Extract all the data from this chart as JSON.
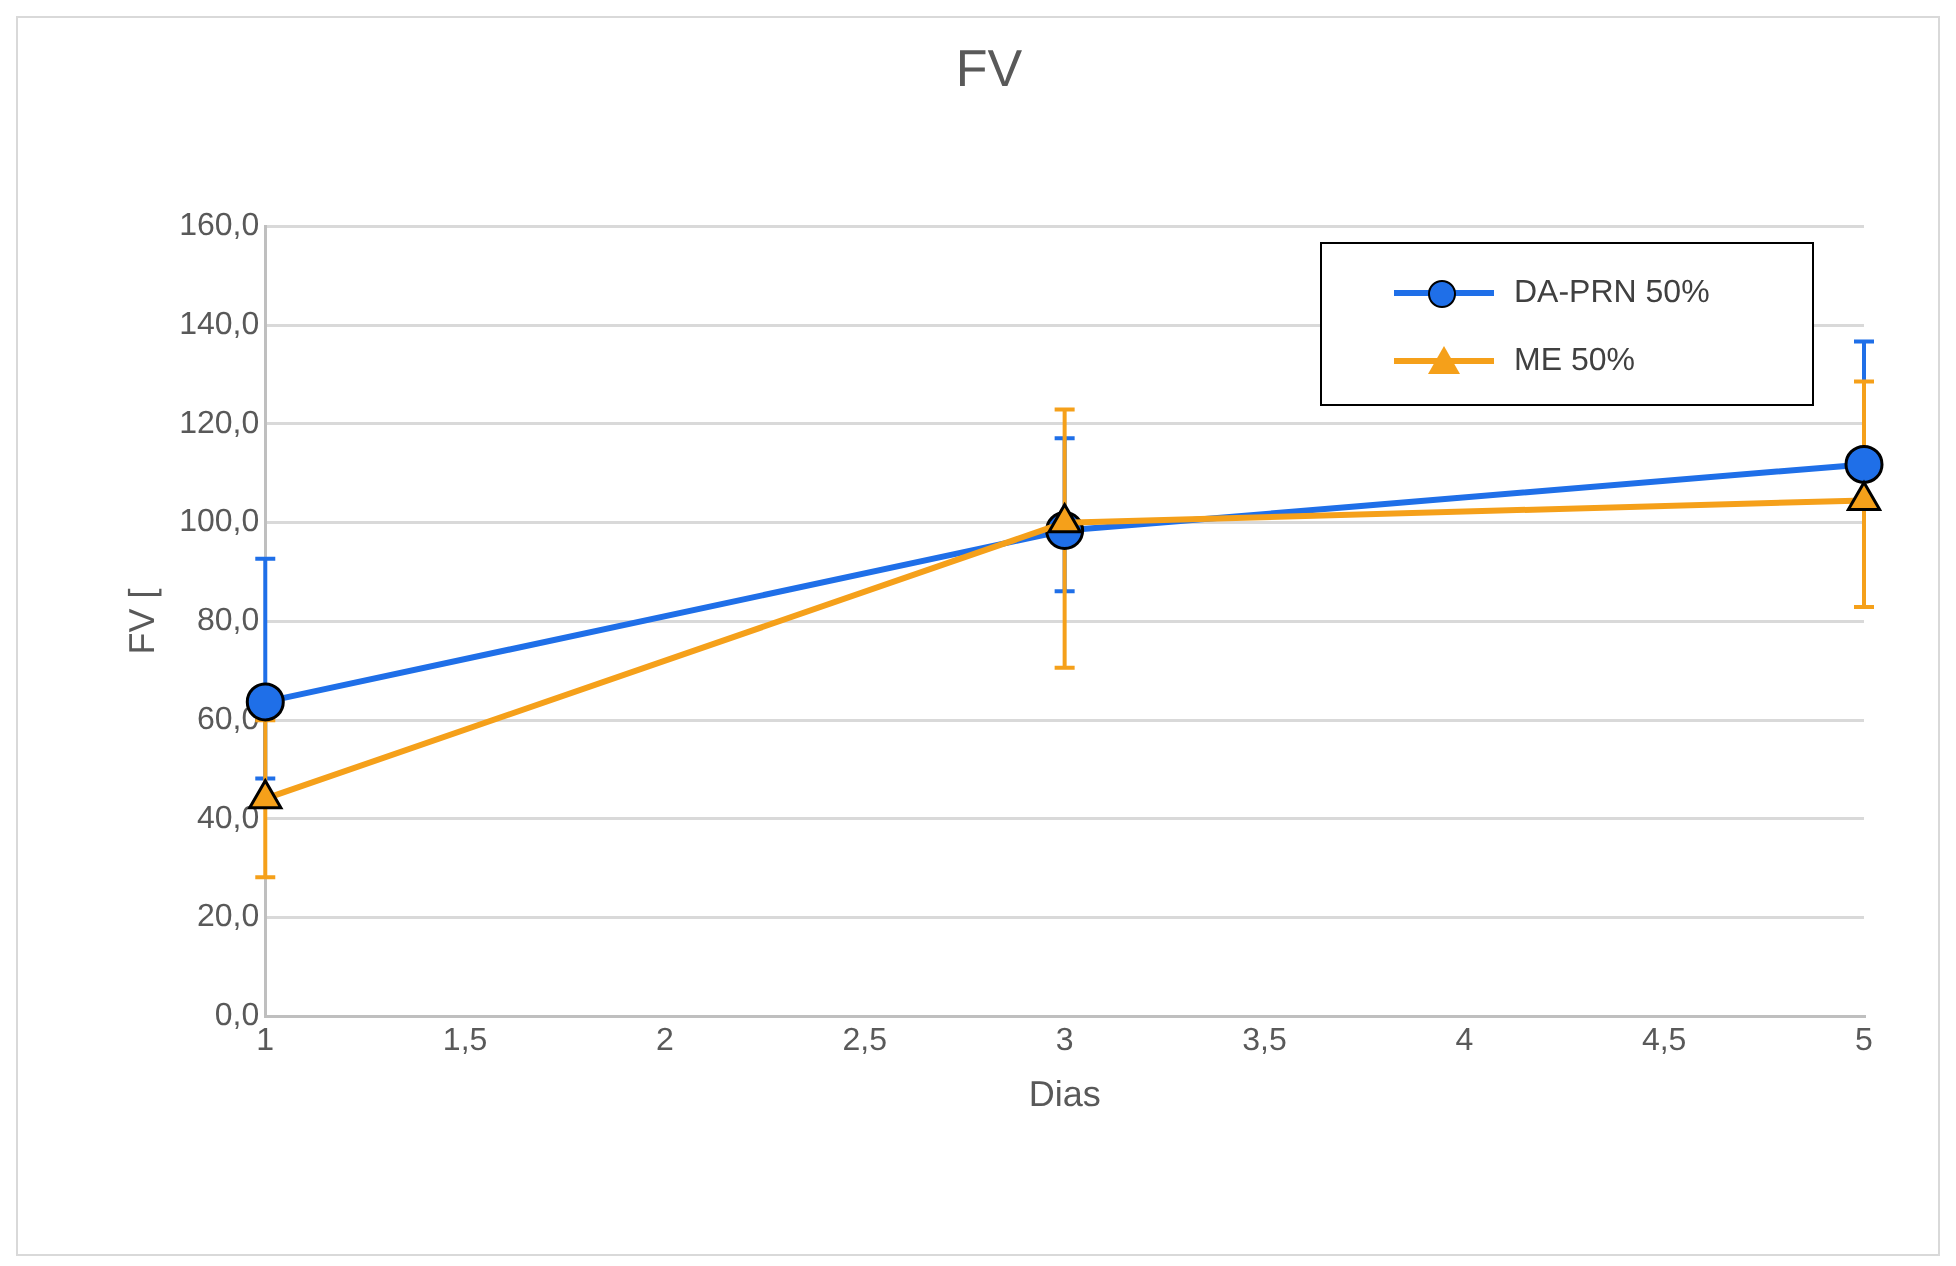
{
  "chart_data": {
    "type": "line",
    "title": "FV",
    "xlabel": "Dias",
    "ylabel": "FV [",
    "x": [
      1,
      3,
      5
    ],
    "xlim": [
      1,
      5
    ],
    "xticks": [
      1,
      {
        "value": 1.5,
        "label": "1,5"
      },
      2,
      {
        "value": 2.5,
        "label": "2,5"
      },
      3,
      {
        "value": 3.5,
        "label": "3,5"
      },
      4,
      {
        "value": 4.5,
        "label": "4,5"
      },
      5
    ],
    "ylim": [
      0,
      160
    ],
    "yticks": [
      {
        "value": 0,
        "label": "0,0"
      },
      {
        "value": 20,
        "label": "20,0"
      },
      {
        "value": 40,
        "label": "40,0"
      },
      {
        "value": 60,
        "label": "60,0"
      },
      {
        "value": 80,
        "label": "80,0"
      },
      {
        "value": 100,
        "label": "100,0"
      },
      {
        "value": 120,
        "label": "120,0"
      },
      {
        "value": 140,
        "label": "140,0"
      },
      {
        "value": 160,
        "label": "160,0"
      }
    ],
    "grid": "y",
    "legend": "top right",
    "line_style": "solid",
    "series": [
      {
        "name": "DA-PRN 50%",
        "color": "#1f6fe8",
        "marker": "circle",
        "values": [
          63.7,
          98.4,
          111.8
        ],
        "errors": [
          [
            48.2,
            92.7
          ],
          [
            86.1,
            117.1
          ],
          [
            109,
            136.7
          ]
        ]
      },
      {
        "name": "ME 50%",
        "color": "#f5a01a",
        "marker": "triangle",
        "values": [
          44.1,
          100,
          104.5
        ],
        "errors": [
          [
            28.2,
            60
          ],
          [
            70.6,
            122.9
          ],
          [
            82.9,
            128.6
          ]
        ]
      }
    ]
  }
}
